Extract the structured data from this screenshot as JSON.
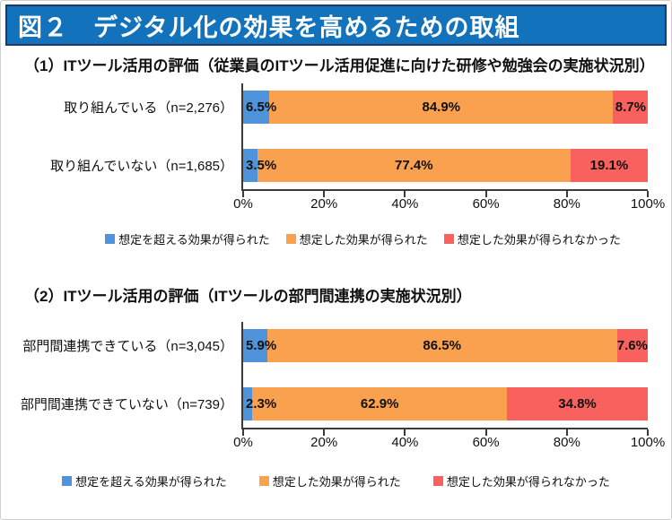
{
  "page": {
    "title": "図２　デジタル化の効果を高めるための取組"
  },
  "colors": {
    "banner_bg": "#1272bc",
    "banner_border": "#1f3864",
    "axis": "#3a3a3a",
    "series": [
      "#4f94db",
      "#f9a14e",
      "#f9615e"
    ]
  },
  "legend": [
    "想定を超える効果が得られた",
    "想定した効果が得られた",
    "想定した効果が得られなかった"
  ],
  "chart_data": [
    {
      "type": "bar",
      "orientation": "horizontal",
      "stacked": true,
      "title": "（1）ITツール活用の評価（従業員のITツール活用促進に向けた研修や勉強会の実施状況別）",
      "categories": [
        "取り組んでいる（n=2,276）",
        "取り組んでいない（n=1,685）"
      ],
      "series": [
        {
          "name": "想定を超える効果が得られた",
          "color": "#4f94db",
          "values": [
            6.5,
            3.5
          ]
        },
        {
          "name": "想定した効果が得られた",
          "color": "#f9a14e",
          "values": [
            84.9,
            77.4
          ]
        },
        {
          "name": "想定した効果が得られなかった",
          "color": "#f9615e",
          "values": [
            8.7,
            19.1
          ]
        }
      ],
      "xlim": [
        0,
        100
      ],
      "x_ticks": [
        "0%",
        "20%",
        "40%",
        "60%",
        "80%",
        "100%"
      ],
      "grid": false,
      "legend_position": "bottom"
    },
    {
      "type": "bar",
      "orientation": "horizontal",
      "stacked": true,
      "title": "（2）ITツール活用の評価（ITツールの部門間連携の実施状況別）",
      "categories": [
        "部門間連携できている（n=3,045）",
        "部門間連携できていない（n=739）"
      ],
      "series": [
        {
          "name": "想定を超える効果が得られた",
          "color": "#4f94db",
          "values": [
            5.9,
            2.3
          ]
        },
        {
          "name": "想定した効果が得られた",
          "color": "#f9a14e",
          "values": [
            86.5,
            62.9
          ]
        },
        {
          "name": "想定した効果が得られなかった",
          "color": "#f9615e",
          "values": [
            7.6,
            34.8
          ]
        }
      ],
      "xlim": [
        0,
        100
      ],
      "x_ticks": [
        "0%",
        "20%",
        "40%",
        "60%",
        "80%",
        "100%"
      ],
      "grid": false,
      "legend_position": "bottom"
    }
  ]
}
